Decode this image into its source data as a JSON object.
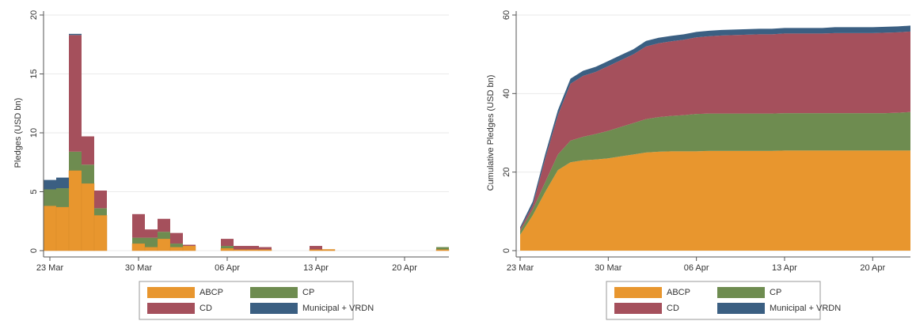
{
  "chart_data": [
    {
      "type": "bar",
      "stacked": true,
      "ylabel": "Pledges (USD bn)",
      "categories": [
        "23 Mar",
        null,
        null,
        null,
        null,
        null,
        null,
        "30 Mar",
        null,
        null,
        null,
        null,
        null,
        null,
        "06 Apr",
        null,
        null,
        null,
        null,
        null,
        null,
        "13 Apr",
        null,
        null,
        null,
        null,
        null,
        null,
        "20 Apr",
        null,
        null,
        null
      ],
      "series": [
        {
          "name": "ABCP",
          "color": "#e8962e",
          "values": [
            3.8,
            3.7,
            6.8,
            5.7,
            3.0,
            0,
            0,
            0.6,
            0.3,
            1.0,
            0.3,
            0.4,
            0,
            0,
            0.2,
            0.1,
            0.1,
            0.1,
            0,
            0,
            0,
            0.1,
            0.1,
            0,
            0,
            0,
            0,
            0,
            0,
            0,
            0,
            0.1
          ]
        },
        {
          "name": "CP",
          "color": "#6e8c50",
          "values": [
            1.4,
            1.6,
            1.6,
            1.6,
            0.6,
            0,
            0,
            0.5,
            0.8,
            0.6,
            0.3,
            0,
            0,
            0,
            0.2,
            0,
            0,
            0,
            0,
            0,
            0,
            0,
            0,
            0,
            0,
            0,
            0,
            0,
            0,
            0,
            0,
            0.2
          ]
        },
        {
          "name": "CD",
          "color": "#a5505c",
          "values": [
            0,
            0,
            9.9,
            2.4,
            1.5,
            0,
            0,
            2.0,
            0.7,
            1.1,
            0.9,
            0.1,
            0,
            0,
            0.6,
            0.3,
            0.3,
            0.2,
            0,
            0,
            0,
            0.3,
            0,
            0,
            0,
            0,
            0,
            0,
            0,
            0,
            0,
            0
          ]
        },
        {
          "name": "Municipal + VRDN",
          "color": "#3b5f82",
          "values": [
            0.8,
            0.9,
            0.1,
            0,
            0,
            0,
            0,
            0,
            0,
            0,
            0,
            0,
            0,
            0,
            0,
            0,
            0,
            0,
            0,
            0,
            0,
            0,
            0,
            0,
            0,
            0,
            0,
            0,
            0,
            0,
            0,
            0
          ]
        }
      ],
      "ylim": [
        0,
        20
      ],
      "yticks": [
        0,
        5,
        10,
        15,
        20
      ],
      "grid": true
    },
    {
      "type": "area",
      "stacked": true,
      "ylabel": "Cumulative Pledges (USD bn)",
      "categories": [
        "23 Mar",
        null,
        null,
        null,
        null,
        null,
        null,
        "30 Mar",
        null,
        null,
        null,
        null,
        null,
        null,
        "06 Apr",
        null,
        null,
        null,
        null,
        null,
        null,
        "13 Apr",
        null,
        null,
        null,
        null,
        null,
        null,
        "20 Apr",
        null,
        null,
        null
      ],
      "series": [
        {
          "name": "ABCP",
          "color": "#e8962e",
          "values": [
            4,
            9,
            15,
            20.5,
            22.5,
            23,
            23.2,
            23.5,
            24,
            24.5,
            25,
            25.2,
            25.3,
            25.3,
            25.3,
            25.4,
            25.4,
            25.4,
            25.4,
            25.4,
            25.4,
            25.5,
            25.5,
            25.5,
            25.5,
            25.5,
            25.5,
            25.5,
            25.5,
            25.5,
            25.5,
            25.5
          ]
        },
        {
          "name": "CP",
          "color": "#6e8c50",
          "values": [
            1,
            1.5,
            2.5,
            4,
            5.5,
            6,
            6.5,
            7,
            7.5,
            8,
            8.5,
            8.8,
            9,
            9.2,
            9.5,
            9.5,
            9.5,
            9.5,
            9.5,
            9.5,
            9.5,
            9.5,
            9.5,
            9.5,
            9.5,
            9.5,
            9.5,
            9.5,
            9.5,
            9.5,
            9.6,
            9.8
          ]
        },
        {
          "name": "CD",
          "color": "#a5505c",
          "values": [
            0.5,
            1,
            6,
            10,
            14.5,
            15.5,
            15.8,
            16.5,
            17,
            17.5,
            18.5,
            18.8,
            19,
            19.2,
            19.5,
            19.7,
            19.9,
            20,
            20.1,
            20.2,
            20.2,
            20.3,
            20.3,
            20.3,
            20.3,
            20.4,
            20.4,
            20.4,
            20.4,
            20.5,
            20.5,
            20.5
          ]
        },
        {
          "name": "Municipal + VRDN",
          "color": "#3b5f82",
          "values": [
            0.5,
            1,
            1.2,
            1.3,
            1.3,
            1.3,
            1.3,
            1.3,
            1.3,
            1.3,
            1.4,
            1.4,
            1.4,
            1.4,
            1.4,
            1.4,
            1.4,
            1.4,
            1.4,
            1.4,
            1.4,
            1.4,
            1.4,
            1.4,
            1.4,
            1.5,
            1.5,
            1.5,
            1.5,
            1.5,
            1.5,
            1.5
          ]
        }
      ],
      "ylim": [
        0,
        60
      ],
      "yticks": [
        0,
        20,
        40,
        60
      ],
      "grid": true
    }
  ]
}
